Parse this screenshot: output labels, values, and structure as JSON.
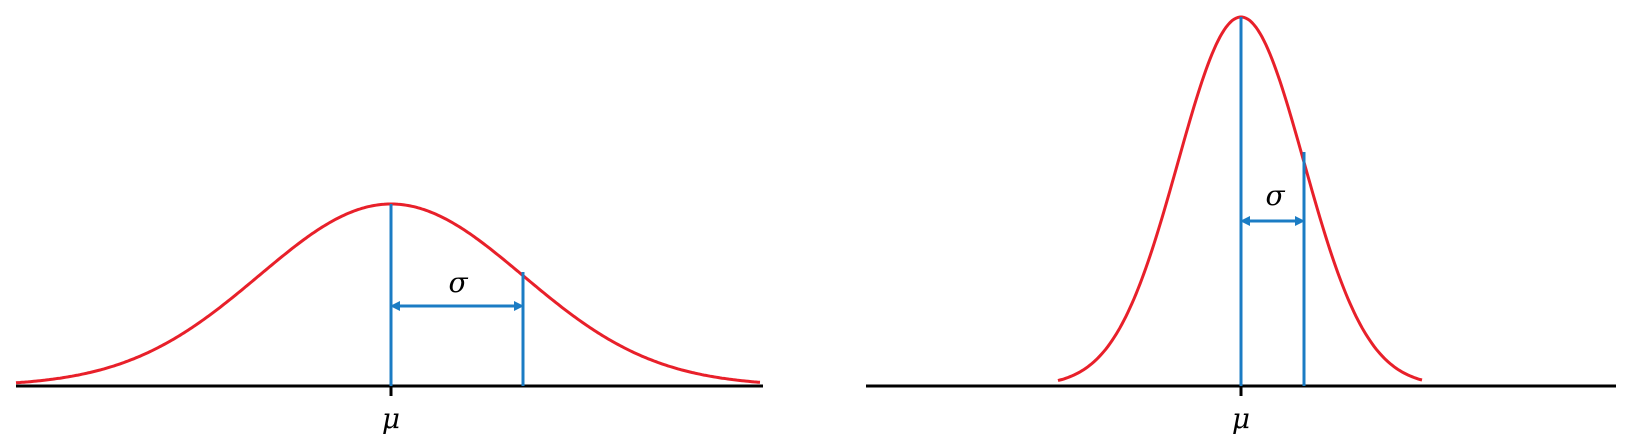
{
  "colors": {
    "curve": "#e8202a",
    "marker": "#1b7cc4",
    "axis": "#000000",
    "background": "#ffffff"
  },
  "diagrams": [
    {
      "name": "wide-normal-curve",
      "mean_label": "μ",
      "sd_label": "σ"
    },
    {
      "name": "narrow-normal-curve",
      "mean_label": "μ",
      "sd_label": "σ"
    }
  ]
}
